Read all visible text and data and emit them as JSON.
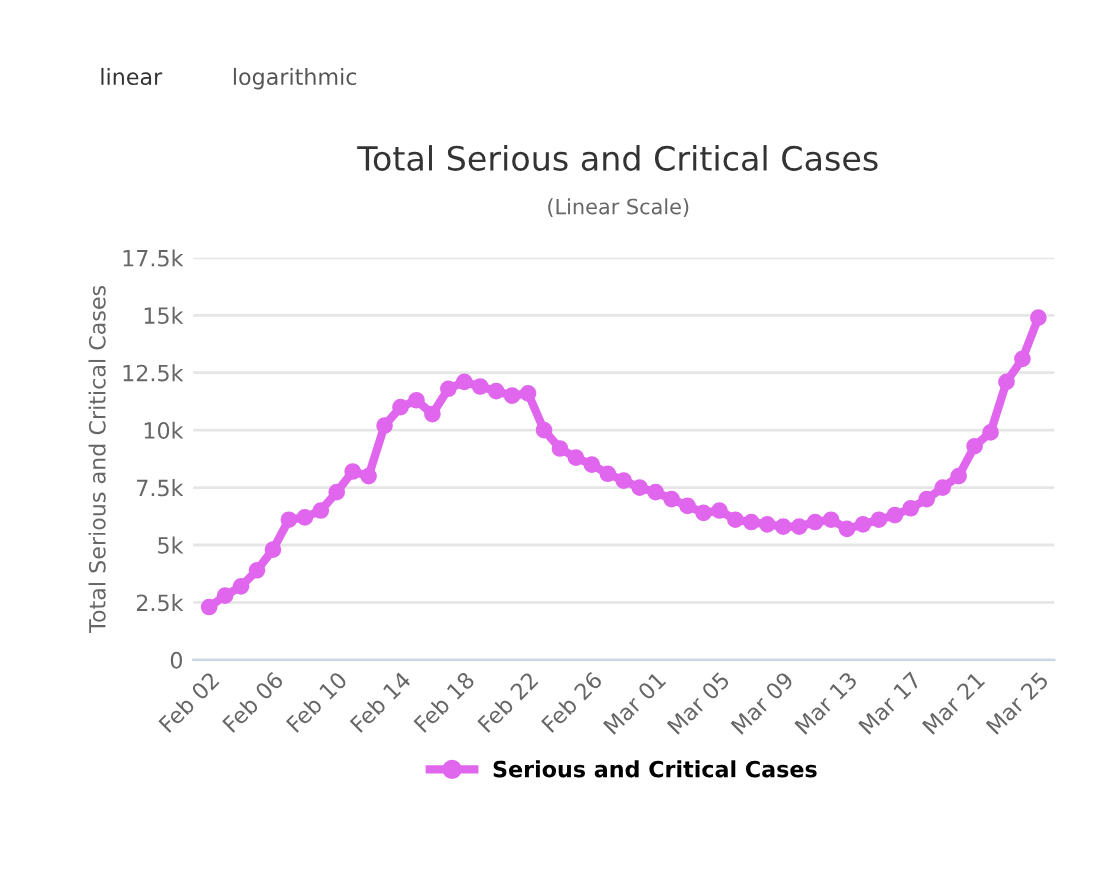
{
  "chart_data": {
    "type": "line",
    "title": "Total Serious and Critical Cases",
    "subtitle": "(Linear Scale)",
    "ylabel": "Total Serious and Critical Cases",
    "annotations": [
      "linear",
      "logarithmic"
    ],
    "categories": [
      "Feb 02",
      null,
      null,
      null,
      "Feb 06",
      null,
      null,
      null,
      "Feb 10",
      null,
      null,
      null,
      "Feb 14",
      null,
      null,
      null,
      "Feb 18",
      null,
      null,
      null,
      "Feb 22",
      null,
      null,
      null,
      "Feb 26",
      null,
      null,
      null,
      "Mar 01",
      null,
      null,
      null,
      "Mar 05",
      null,
      null,
      null,
      "Mar 09",
      null,
      null,
      null,
      "Mar 13",
      null,
      null,
      null,
      "Mar 17",
      null,
      null,
      null,
      "Mar 21",
      null,
      null,
      null,
      "Mar 25"
    ],
    "series": [
      {
        "name": "Serious and Critical Cases",
        "color": "#e066ee",
        "values": [
          2300,
          2800,
          3200,
          3900,
          4800,
          6100,
          6200,
          6500,
          7300,
          8200,
          8000,
          10200,
          11000,
          11300,
          10700,
          11800,
          12100,
          11900,
          11700,
          11500,
          11600,
          10000,
          9200,
          8800,
          8500,
          8100,
          7800,
          7500,
          7300,
          7000,
          6700,
          6400,
          6500,
          6100,
          6000,
          5900,
          5800,
          5800,
          6000,
          6100,
          5700,
          5900,
          6100,
          6300,
          6600,
          7000,
          7500,
          8000,
          9300,
          9900,
          12100,
          13100,
          14900
        ]
      }
    ],
    "ylim": [
      0,
      17500
    ],
    "yticks": [
      0,
      {
        "value": 2500,
        "label": "2.5k"
      },
      {
        "value": 5000,
        "label": "5k"
      },
      {
        "value": 7500,
        "label": "7.5k"
      },
      {
        "value": 10000,
        "label": "10k"
      },
      {
        "value": 12500,
        "label": "12.5k"
      },
      {
        "value": 15000,
        "label": "15k"
      },
      {
        "value": 17500,
        "label": "17.5k"
      }
    ],
    "grid": "y",
    "legend": "bottom",
    "marker": "circle",
    "line_style": "solid"
  }
}
